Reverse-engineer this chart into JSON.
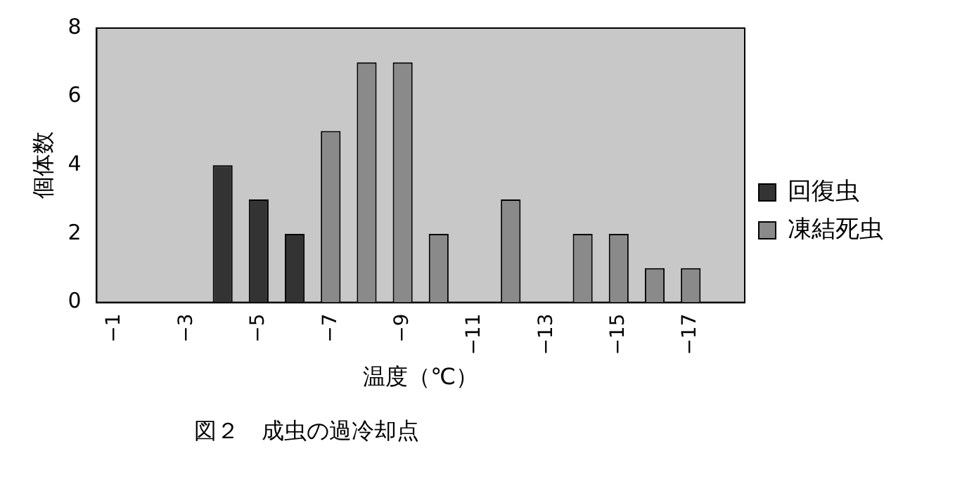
{
  "chart_data": {
    "type": "bar",
    "xlabel": "温度（℃）",
    "ylabel": "個体数",
    "categories": [
      "−1",
      null,
      "−3",
      null,
      "−5",
      null,
      "−7",
      null,
      "−9",
      null,
      "−11",
      null,
      "−13",
      null,
      "−15",
      null,
      "−17",
      null
    ],
    "series": [
      {
        "name": "回復虫",
        "color": "#333333",
        "values": [
          null,
          null,
          null,
          4,
          3,
          2,
          null,
          null,
          null,
          null,
          null,
          null,
          null,
          null,
          null,
          null,
          null,
          null
        ]
      },
      {
        "name": "凍結死虫",
        "color": "#8a8a8a",
        "values": [
          null,
          null,
          null,
          null,
          null,
          null,
          5,
          7,
          7,
          2,
          null,
          3,
          null,
          2,
          2,
          1,
          1,
          null
        ]
      }
    ],
    "ylim": [
      0,
      8
    ],
    "yticks": [
      0,
      2,
      4,
      6,
      8
    ],
    "grid": false,
    "legend": "right",
    "annotations": [
      "図２　成虫の過冷却点"
    ]
  }
}
